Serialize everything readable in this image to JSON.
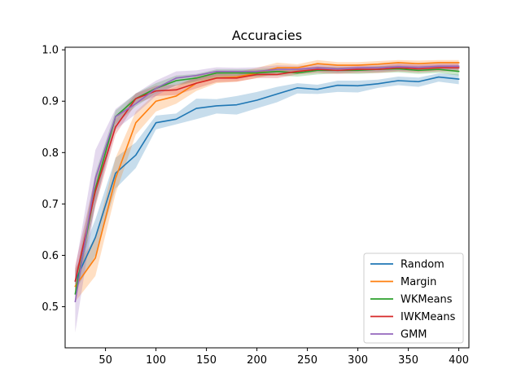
{
  "chart_data": {
    "type": "line",
    "title": "Accuracies",
    "xlabel": "",
    "ylabel": "",
    "xlim": [
      10,
      410
    ],
    "ylim": [
      0.42,
      1.005
    ],
    "xticks": [
      50,
      100,
      150,
      200,
      250,
      300,
      350,
      400
    ],
    "yticks": [
      0.5,
      0.6,
      0.7,
      0.8,
      0.9,
      1.0
    ],
    "xtick_labels": [
      "50",
      "100",
      "150",
      "200",
      "250",
      "300",
      "350",
      "400"
    ],
    "ytick_labels": [
      "0.5",
      "0.6",
      "0.7",
      "0.8",
      "0.9",
      "1.0"
    ],
    "grid": false,
    "legend_position": "lower-right",
    "x": [
      20,
      40,
      60,
      80,
      100,
      120,
      140,
      160,
      180,
      200,
      220,
      240,
      260,
      280,
      300,
      320,
      340,
      360,
      380,
      400
    ],
    "series": [
      {
        "name": "Random",
        "color": "#1f77b4",
        "values": [
          0.55,
          0.635,
          0.76,
          0.795,
          0.858,
          0.865,
          0.886,
          0.891,
          0.893,
          0.902,
          0.914,
          0.926,
          0.923,
          0.931,
          0.93,
          0.934,
          0.94,
          0.938,
          0.947,
          0.943
        ],
        "lower": [
          0.53,
          0.6,
          0.73,
          0.77,
          0.845,
          0.855,
          0.865,
          0.876,
          0.874,
          0.886,
          0.898,
          0.915,
          0.914,
          0.918,
          0.917,
          0.926,
          0.931,
          0.928,
          0.938,
          0.933
        ],
        "upper": [
          0.57,
          0.67,
          0.79,
          0.82,
          0.872,
          0.876,
          0.905,
          0.904,
          0.91,
          0.918,
          0.928,
          0.935,
          0.932,
          0.94,
          0.94,
          0.942,
          0.948,
          0.946,
          0.954,
          0.952
        ]
      },
      {
        "name": "Margin",
        "color": "#ff7f0e",
        "values": [
          0.54,
          0.595,
          0.75,
          0.858,
          0.9,
          0.91,
          0.935,
          0.945,
          0.947,
          0.955,
          0.965,
          0.965,
          0.973,
          0.97,
          0.97,
          0.972,
          0.975,
          0.973,
          0.975,
          0.975
        ],
        "lower": [
          0.51,
          0.56,
          0.72,
          0.835,
          0.88,
          0.895,
          0.92,
          0.935,
          0.938,
          0.945,
          0.955,
          0.958,
          0.965,
          0.962,
          0.963,
          0.965,
          0.968,
          0.966,
          0.968,
          0.968
        ],
        "upper": [
          0.575,
          0.635,
          0.79,
          0.88,
          0.915,
          0.928,
          0.95,
          0.958,
          0.957,
          0.965,
          0.975,
          0.972,
          0.98,
          0.976,
          0.976,
          0.978,
          0.98,
          0.979,
          0.98,
          0.98
        ]
      },
      {
        "name": "WKMeans",
        "color": "#2ca02c",
        "values": [
          0.525,
          0.73,
          0.87,
          0.905,
          0.925,
          0.94,
          0.945,
          0.955,
          0.955,
          0.955,
          0.958,
          0.955,
          0.96,
          0.96,
          0.96,
          0.962,
          0.963,
          0.96,
          0.962,
          0.958
        ],
        "lower": [
          0.51,
          0.7,
          0.855,
          0.89,
          0.915,
          0.93,
          0.938,
          0.945,
          0.948,
          0.948,
          0.95,
          0.948,
          0.952,
          0.954,
          0.953,
          0.955,
          0.956,
          0.953,
          0.955,
          0.95
        ],
        "upper": [
          0.555,
          0.76,
          0.882,
          0.915,
          0.935,
          0.95,
          0.953,
          0.962,
          0.962,
          0.962,
          0.965,
          0.962,
          0.967,
          0.966,
          0.966,
          0.968,
          0.969,
          0.967,
          0.968,
          0.965
        ]
      },
      {
        "name": "IWKMeans",
        "color": "#d62728",
        "values": [
          0.55,
          0.725,
          0.85,
          0.905,
          0.92,
          0.922,
          0.935,
          0.945,
          0.945,
          0.952,
          0.952,
          0.958,
          0.962,
          0.96,
          0.962,
          0.962,
          0.965,
          0.963,
          0.965,
          0.965
        ],
        "lower": [
          0.53,
          0.695,
          0.835,
          0.895,
          0.91,
          0.912,
          0.925,
          0.937,
          0.938,
          0.945,
          0.945,
          0.952,
          0.955,
          0.953,
          0.955,
          0.955,
          0.958,
          0.956,
          0.958,
          0.958
        ],
        "upper": [
          0.58,
          0.755,
          0.865,
          0.915,
          0.93,
          0.932,
          0.945,
          0.953,
          0.952,
          0.96,
          0.96,
          0.965,
          0.968,
          0.966,
          0.968,
          0.968,
          0.972,
          0.97,
          0.972,
          0.972
        ]
      },
      {
        "name": "GMM",
        "color": "#9467bd",
        "values": [
          0.51,
          0.75,
          0.87,
          0.895,
          0.925,
          0.945,
          0.95,
          0.958,
          0.958,
          0.958,
          0.962,
          0.962,
          0.965,
          0.963,
          0.965,
          0.965,
          0.967,
          0.966,
          0.968,
          0.968
        ],
        "lower": [
          0.45,
          0.7,
          0.845,
          0.875,
          0.91,
          0.932,
          0.94,
          0.95,
          0.95,
          0.95,
          0.955,
          0.955,
          0.958,
          0.956,
          0.958,
          0.958,
          0.96,
          0.959,
          0.961,
          0.961
        ],
        "upper": [
          0.575,
          0.805,
          0.885,
          0.915,
          0.94,
          0.958,
          0.96,
          0.966,
          0.965,
          0.966,
          0.97,
          0.969,
          0.972,
          0.97,
          0.972,
          0.972,
          0.974,
          0.973,
          0.975,
          0.975
        ]
      }
    ]
  }
}
